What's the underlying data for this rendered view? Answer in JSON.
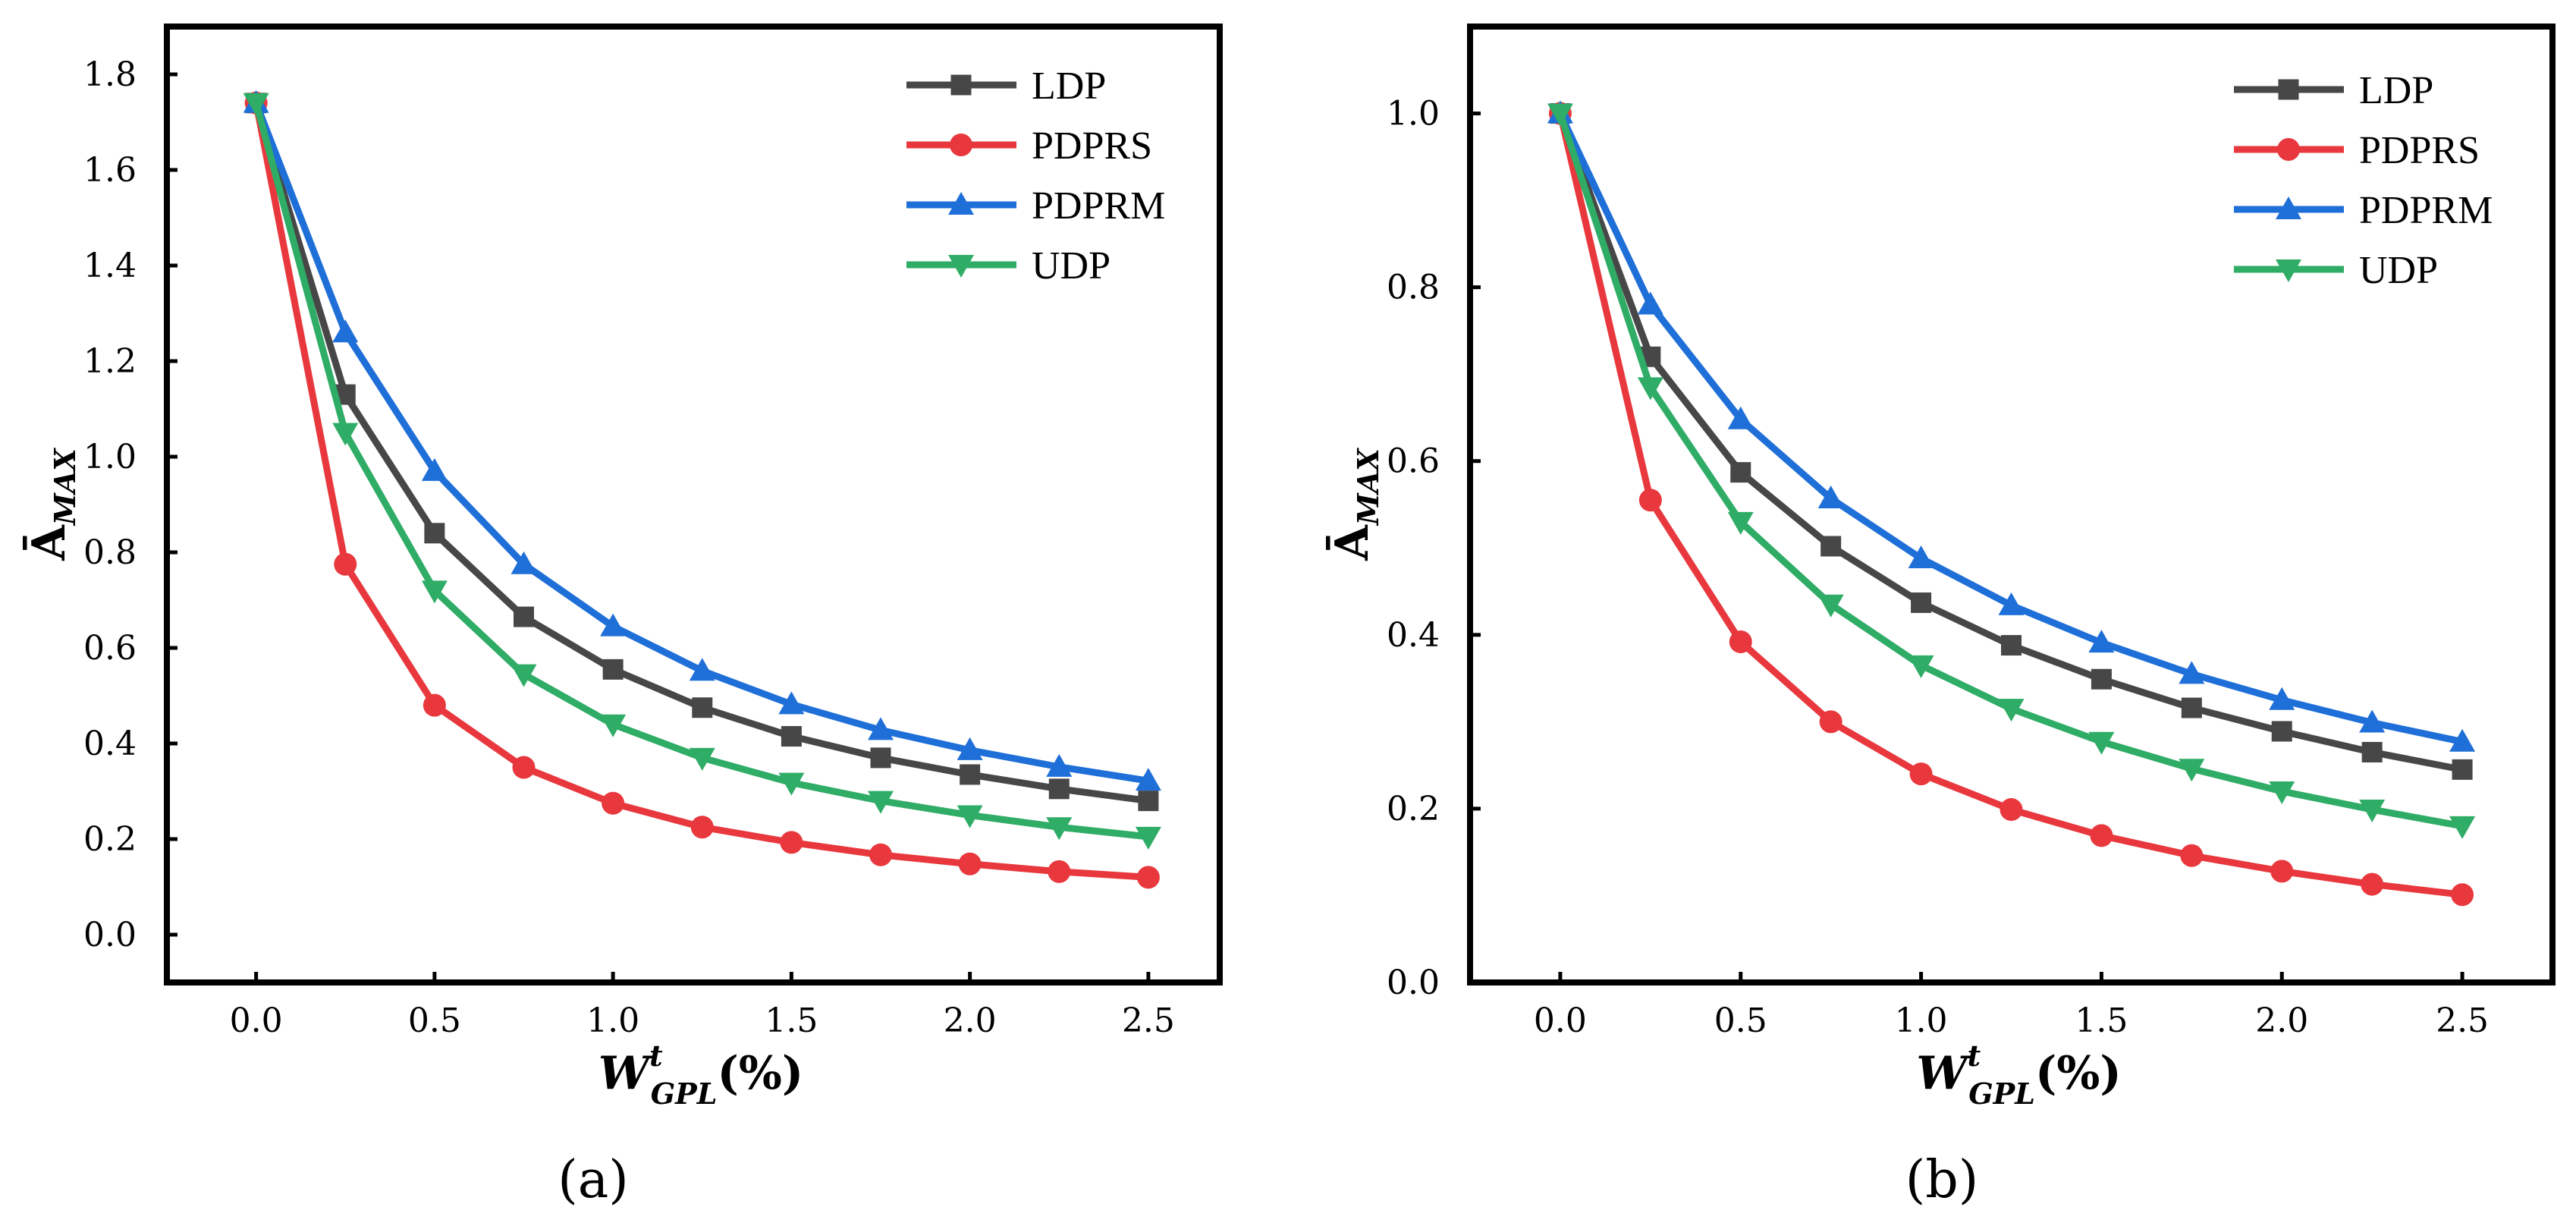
{
  "figure": {
    "panels": [
      "(a)",
      "(b)"
    ]
  },
  "chart_data": [
    {
      "type": "line",
      "panel_label": "(a)",
      "xlabel": {
        "main": "W",
        "sup": "t",
        "sub": "GPL",
        "unit": "(%)"
      },
      "ylabel": {
        "main": "Ā",
        "sub": "MAX"
      },
      "x": [
        0,
        0.25,
        0.5,
        0.75,
        1.0,
        1.25,
        1.5,
        1.75,
        2.0,
        2.25,
        2.5
      ],
      "xlim": [
        -0.25,
        2.7
      ],
      "ylim": [
        -0.1,
        1.9
      ],
      "xticks": [
        "0.0",
        "0.5",
        "1.0",
        "1.5",
        "2.0",
        "2.5"
      ],
      "yticks": [
        "0.0",
        "0.2",
        "0.4",
        "0.6",
        "0.8",
        "1.0",
        "1.2",
        "1.4",
        "1.6",
        "1.8"
      ],
      "grid": false,
      "legend_position": "top-right",
      "series": [
        {
          "name": "LDP",
          "color": "#474747",
          "marker": "square",
          "values": [
            1.74,
            1.13,
            0.84,
            0.665,
            0.555,
            0.475,
            0.415,
            0.37,
            0.335,
            0.305,
            0.28
          ]
        },
        {
          "name": "PDPRS",
          "color": "#e8383d",
          "marker": "circle",
          "values": [
            1.74,
            0.775,
            0.48,
            0.35,
            0.275,
            0.225,
            0.193,
            0.167,
            0.148,
            0.132,
            0.12
          ]
        },
        {
          "name": "PDPRM",
          "color": "#1f6fd8",
          "marker": "triangle-up",
          "values": [
            1.74,
            1.26,
            0.97,
            0.775,
            0.645,
            0.552,
            0.482,
            0.428,
            0.386,
            0.351,
            0.322
          ]
        },
        {
          "name": "UDP",
          "color": "#2fac66",
          "marker": "triangle-down",
          "values": [
            1.74,
            1.05,
            0.72,
            0.545,
            0.44,
            0.37,
            0.318,
            0.28,
            0.25,
            0.225,
            0.205
          ]
        }
      ]
    },
    {
      "type": "line",
      "panel_label": "(b)",
      "xlabel": {
        "main": "W",
        "sup": "t",
        "sub": "GPL",
        "unit": "(%)"
      },
      "ylabel": {
        "main": "Ā",
        "sub": "MAX"
      },
      "x": [
        0,
        0.25,
        0.5,
        0.75,
        1.0,
        1.25,
        1.5,
        1.75,
        2.0,
        2.25,
        2.5
      ],
      "xlim": [
        -0.25,
        2.75
      ],
      "ylim": [
        0.0,
        1.1
      ],
      "xticks": [
        "0.0",
        "0.5",
        "1.0",
        "1.5",
        "2.0",
        "2.5"
      ],
      "yticks": [
        "0.0",
        "0.2",
        "0.4",
        "0.6",
        "0.8",
        "1.0"
      ],
      "grid": false,
      "legend_position": "top-right",
      "series": [
        {
          "name": "LDP",
          "color": "#474747",
          "marker": "square",
          "values": [
            1.0,
            0.72,
            0.587,
            0.502,
            0.437,
            0.388,
            0.349,
            0.316,
            0.289,
            0.265,
            0.245
          ]
        },
        {
          "name": "PDPRS",
          "color": "#e8383d",
          "marker": "circle",
          "values": [
            1.0,
            0.555,
            0.392,
            0.3,
            0.24,
            0.199,
            0.169,
            0.146,
            0.128,
            0.113,
            0.101
          ]
        },
        {
          "name": "PDPRM",
          "color": "#1f6fd8",
          "marker": "triangle-up",
          "values": [
            1.0,
            0.78,
            0.648,
            0.557,
            0.488,
            0.434,
            0.391,
            0.355,
            0.325,
            0.299,
            0.277
          ]
        },
        {
          "name": "UDP",
          "color": "#2fac66",
          "marker": "triangle-down",
          "values": [
            1.0,
            0.685,
            0.53,
            0.435,
            0.365,
            0.315,
            0.277,
            0.246,
            0.22,
            0.199,
            0.18
          ]
        }
      ]
    }
  ]
}
